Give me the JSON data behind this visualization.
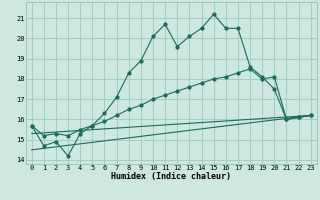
{
  "xlabel": "Humidex (Indice chaleur)",
  "bg_color": "#cce8e0",
  "grid_color": "#99ccbb",
  "line_color": "#1a6b5a",
  "xlim": [
    -0.5,
    23.5
  ],
  "ylim": [
    13.8,
    21.8
  ],
  "yticks": [
    14,
    15,
    16,
    17,
    18,
    19,
    20,
    21
  ],
  "xticks": [
    0,
    1,
    2,
    3,
    4,
    5,
    6,
    7,
    8,
    9,
    10,
    11,
    12,
    13,
    14,
    15,
    16,
    17,
    18,
    19,
    20,
    21,
    22,
    23
  ],
  "series1_x": [
    0,
    1,
    2,
    3,
    4,
    5,
    6,
    7,
    8,
    9,
    10,
    11,
    12,
    13,
    14,
    15,
    16,
    17,
    18,
    19,
    20,
    21,
    22,
    23
  ],
  "series1_y": [
    15.7,
    14.7,
    14.9,
    14.2,
    15.3,
    15.7,
    16.3,
    17.1,
    18.3,
    18.9,
    20.1,
    20.7,
    19.6,
    20.1,
    20.5,
    21.2,
    20.5,
    20.5,
    18.6,
    18.1,
    17.5,
    16.0,
    16.1,
    16.2
  ],
  "series2_x": [
    0,
    1,
    2,
    3,
    4,
    5,
    6,
    7,
    8,
    9,
    10,
    11,
    12,
    13,
    14,
    15,
    16,
    17,
    18,
    19,
    20,
    21,
    22,
    23
  ],
  "series2_y": [
    15.7,
    15.2,
    15.3,
    15.2,
    15.5,
    15.7,
    15.9,
    16.2,
    16.5,
    16.7,
    17.0,
    17.2,
    17.4,
    17.6,
    17.8,
    18.0,
    18.1,
    18.3,
    18.5,
    18.0,
    18.1,
    16.0,
    16.1,
    16.2
  ],
  "series3_x": [
    0,
    23
  ],
  "series3_y": [
    15.3,
    16.2
  ],
  "series4_x": [
    0,
    23
  ],
  "series4_y": [
    14.5,
    16.2
  ],
  "font_family": "monospace"
}
